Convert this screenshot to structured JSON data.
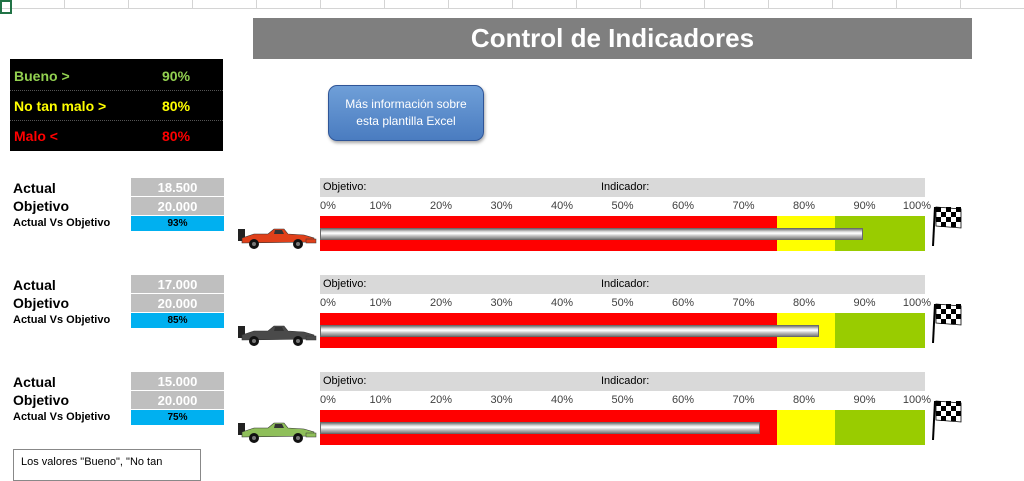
{
  "title": "Control de Indicadores",
  "legend": [
    {
      "label": "Bueno  >",
      "value": "90%",
      "color": "#92d050"
    },
    {
      "label": "No tan malo >",
      "value": "80%",
      "color": "#ffff00"
    },
    {
      "label": "Malo <",
      "value": "80%",
      "color": "#ff0000"
    }
  ],
  "info_button": {
    "line1": "Más información sobre",
    "line2": "esta plantilla Excel"
  },
  "labels": {
    "actual": "Actual",
    "objetivo": "Objetivo",
    "actual_vs_objetivo": "Actual Vs Objetivo",
    "header_objetivo": "Objetivo:",
    "header_indicador": "Indicador:"
  },
  "scale_ticks": [
    "0%",
    "10%",
    "20%",
    "30%",
    "40%",
    "50%",
    "60%",
    "70%",
    "80%",
    "90%",
    "100%"
  ],
  "thresholds": {
    "bueno": 0.9,
    "no_tan_malo": 0.8
  },
  "indicators": [
    {
      "actual": "18.500",
      "objetivo": "20.000",
      "pct": "93%",
      "progress": 0.925,
      "car_color": "#e0401a",
      "car_icon": "race-car-icon",
      "flag_icon": "checkered-flag-icon"
    },
    {
      "actual": "17.000",
      "objetivo": "20.000",
      "pct": "85%",
      "progress": 0.85,
      "car_color": "#4a4a4a",
      "car_icon": "race-car-icon",
      "flag_icon": "checkered-flag-icon"
    },
    {
      "actual": "15.000",
      "objetivo": "20.000",
      "pct": "75%",
      "progress": 0.75,
      "car_color": "#8fbf5a",
      "car_icon": "race-car-icon",
      "flag_icon": "checkered-flag-icon"
    }
  ],
  "note": "Los valores \"Bueno\", \"No tan",
  "colors": {
    "title_bg": "#7f7f7f",
    "zone_red": "#ff0000",
    "zone_yellow": "#ffff00",
    "zone_green": "#99cc00",
    "pct_bg": "#00b0f0",
    "value_bg": "#bfbfbf",
    "button": "#4f81bd"
  }
}
